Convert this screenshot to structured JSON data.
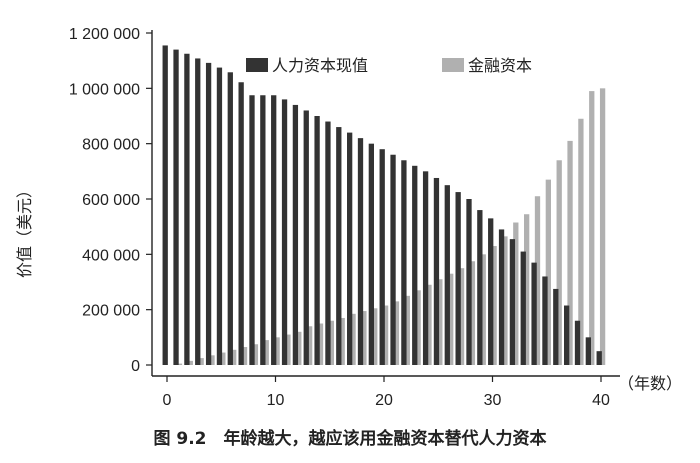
{
  "caption": "图 9.2　年龄越大，越应该用金融资本替代人力资本",
  "chart_data": {
    "type": "bar",
    "ylabel": "价值（美元）",
    "xlabel": "（年数）",
    "ylim": [
      0,
      1200000
    ],
    "yticks": [
      0,
      200000,
      400000,
      600000,
      800000,
      1000000,
      1200000
    ],
    "ytick_labels": [
      "0",
      "200 000",
      "400 000",
      "600 000",
      "800 000",
      "1 000 000",
      "1 200 000"
    ],
    "xlim": [
      0,
      40
    ],
    "xticks": [
      0,
      10,
      20,
      30,
      40
    ],
    "xtick_labels": [
      "0",
      "10",
      "20",
      "30",
      "40"
    ],
    "grid": false,
    "legend": "top",
    "colors": {
      "human": "#333333",
      "financial": "#b0b0b0"
    },
    "x": [
      0,
      1,
      2,
      3,
      4,
      5,
      6,
      7,
      8,
      9,
      10,
      11,
      12,
      13,
      14,
      15,
      16,
      17,
      18,
      19,
      20,
      21,
      22,
      23,
      24,
      25,
      26,
      27,
      28,
      29,
      30,
      31,
      32,
      33,
      34,
      35,
      36,
      37,
      38,
      39,
      40
    ],
    "series": [
      {
        "name": "人力资本现值",
        "key": "human",
        "values": [
          1155000,
          1140000,
          1125000,
          1108000,
          1092000,
          1075000,
          1058000,
          1022000,
          975000,
          975000,
          975000,
          960000,
          940000,
          920000,
          900000,
          880000,
          860000,
          840000,
          820000,
          800000,
          780000,
          760000,
          740000,
          720000,
          700000,
          676000,
          650000,
          625000,
          600000,
          560000,
          530000,
          490000,
          455000,
          410000,
          370000,
          320000,
          275000,
          215000,
          160000,
          100000,
          50000
        ]
      },
      {
        "name": "金融资本",
        "key": "financial",
        "values": [
          0,
          5000,
          15000,
          25000,
          35000,
          45000,
          55000,
          65000,
          75000,
          90000,
          100000,
          110000,
          120000,
          140000,
          150000,
          160000,
          170000,
          185000,
          195000,
          205000,
          215000,
          230000,
          250000,
          270000,
          290000,
          310000,
          330000,
          350000,
          375000,
          400000,
          430000,
          465000,
          515000,
          545000,
          610000,
          670000,
          740000,
          810000,
          890000,
          990000,
          1000000
        ]
      }
    ]
  }
}
